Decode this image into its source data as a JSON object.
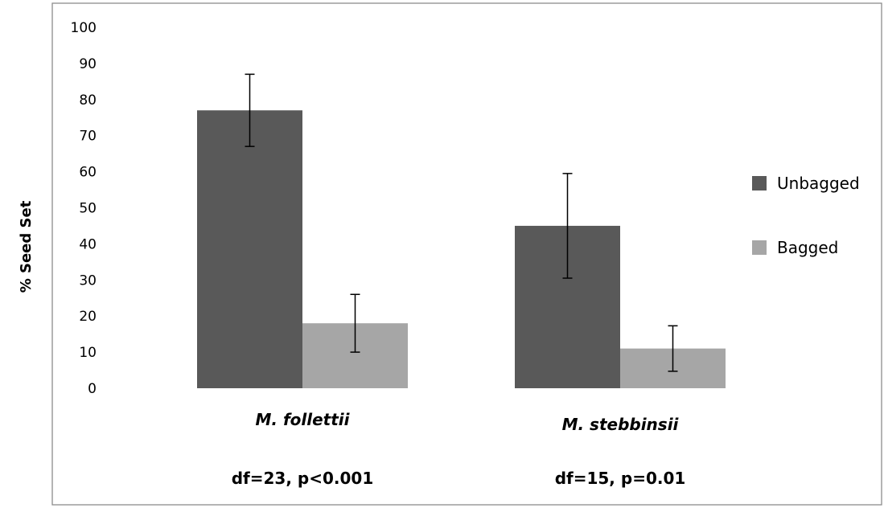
{
  "chart_data": {
    "type": "bar",
    "categories": [
      "M. follettii",
      "M. stebbinsii"
    ],
    "category_stats": [
      "df=23, p<0.001",
      "df=15, p=0.01"
    ],
    "series": [
      {
        "name": "Unbagged",
        "values": [
          77,
          45
        ],
        "error": [
          10,
          14.5
        ],
        "color": "#595959"
      },
      {
        "name": "Bagged",
        "values": [
          18,
          11
        ],
        "error": [
          8,
          6.3
        ],
        "color": "#a6a6a6"
      }
    ],
    "title": "",
    "xlabel": "",
    "ylabel": "% Seed Set",
    "ylim": [
      0,
      100
    ],
    "yticks": [
      0,
      10,
      20,
      30,
      40,
      50,
      60,
      70,
      80,
      90,
      100
    ],
    "grid": false,
    "legend_position": "right"
  }
}
